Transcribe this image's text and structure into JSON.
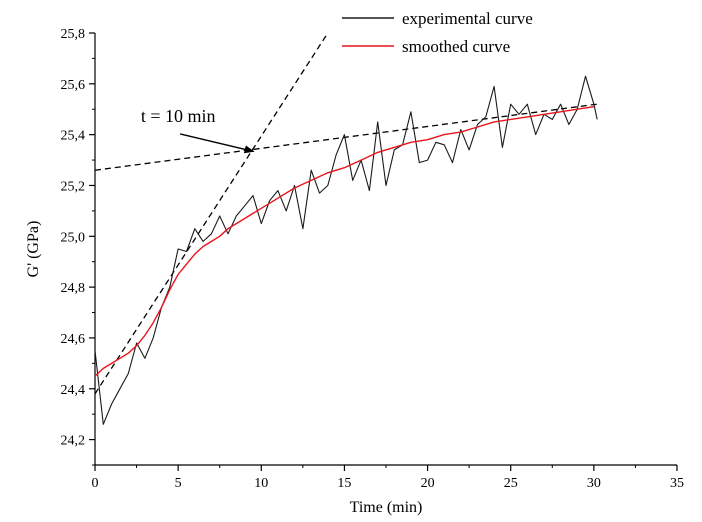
{
  "chart_data": {
    "type": "line",
    "xlabel": "Time (min)",
    "ylabel": "G' (GPa)",
    "xlim": [
      0,
      35
    ],
    "ylim": [
      24.1,
      25.8
    ],
    "x_ticks": [
      0,
      5,
      10,
      15,
      20,
      25,
      30,
      35
    ],
    "x_tick_labels": [
      "0",
      "5",
      "10",
      "15",
      "20",
      "25",
      "30",
      "35"
    ],
    "y_ticks": [
      24.2,
      24.4,
      24.6,
      24.8,
      25.0,
      25.2,
      25.4,
      25.6,
      25.8
    ],
    "y_tick_labels": [
      "24,2",
      "24,4",
      "24,6",
      "24,8",
      "25,0",
      "25,2",
      "25,4",
      "25,6",
      "25,8"
    ],
    "grid": false,
    "legend_position": "top-right",
    "series": [
      {
        "name": "experimental curve",
        "color": "#1a1a1a",
        "x": [
          0.0,
          0.5,
          1.0,
          1.5,
          2.0,
          2.5,
          3.0,
          3.5,
          4.0,
          4.5,
          5.0,
          5.5,
          6.0,
          6.5,
          7.0,
          7.5,
          8.0,
          8.5,
          9.0,
          9.5,
          10.0,
          10.5,
          11.0,
          11.5,
          12.0,
          12.5,
          13.0,
          13.5,
          14.0,
          14.5,
          15.0,
          15.5,
          16.0,
          16.5,
          17.0,
          17.5,
          18.0,
          18.5,
          19.0,
          19.5,
          20.0,
          20.5,
          21.0,
          21.5,
          22.0,
          22.5,
          23.0,
          23.5,
          24.0,
          24.5,
          25.0,
          25.5,
          26.0,
          26.5,
          27.0,
          27.5,
          28.0,
          28.5,
          29.0,
          29.5,
          30.0,
          30.2
        ],
        "y": [
          24.55,
          24.26,
          24.34,
          24.4,
          24.46,
          24.58,
          24.52,
          24.6,
          24.72,
          24.8,
          24.95,
          24.94,
          25.03,
          24.98,
          25.01,
          25.08,
          25.01,
          25.08,
          25.12,
          25.16,
          25.05,
          25.14,
          25.18,
          25.1,
          25.2,
          25.03,
          25.26,
          25.17,
          25.2,
          25.32,
          25.4,
          25.22,
          25.3,
          25.18,
          25.45,
          25.2,
          25.34,
          25.36,
          25.49,
          25.29,
          25.3,
          25.37,
          25.36,
          25.29,
          25.42,
          25.34,
          25.44,
          25.47,
          25.59,
          25.35,
          25.52,
          25.48,
          25.52,
          25.4,
          25.48,
          25.46,
          25.52,
          25.44,
          25.5,
          25.63,
          25.52,
          25.46
        ]
      },
      {
        "name": "smoothed curve",
        "color": "#e8141c",
        "x": [
          0,
          0.5,
          1,
          1.5,
          2,
          2.5,
          3,
          3.5,
          4,
          4.5,
          5,
          5.5,
          6,
          6.5,
          7,
          7.5,
          8,
          8.5,
          9,
          9.5,
          10,
          11,
          12,
          13,
          14,
          15,
          16,
          17,
          18,
          19,
          20,
          21,
          22,
          23,
          24,
          25,
          26,
          27,
          28,
          29,
          30
        ],
        "y": [
          24.45,
          24.48,
          24.5,
          24.52,
          24.54,
          24.57,
          24.61,
          24.66,
          24.72,
          24.79,
          24.85,
          24.89,
          24.93,
          24.96,
          24.98,
          25.0,
          25.03,
          25.05,
          25.07,
          25.09,
          25.11,
          25.15,
          25.19,
          25.22,
          25.25,
          25.27,
          25.3,
          25.33,
          25.35,
          25.37,
          25.38,
          25.4,
          25.41,
          25.43,
          25.45,
          25.46,
          25.47,
          25.48,
          25.49,
          25.5,
          25.51
        ]
      }
    ],
    "annotation": {
      "text": "t = 10 min",
      "target": [
        9.6,
        25.33
      ],
      "text_at": [
        5.0,
        25.45
      ]
    },
    "tangents": [
      {
        "x": [
          0,
          14.0
        ],
        "y": [
          24.38,
          25.8
        ]
      },
      {
        "x": [
          0,
          30.2
        ],
        "y": [
          25.26,
          25.52
        ]
      }
    ]
  }
}
